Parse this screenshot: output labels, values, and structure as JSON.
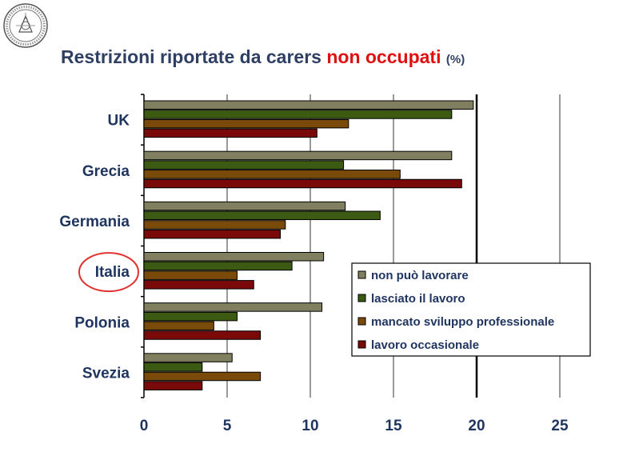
{
  "page": {
    "title_main": "Restrizioni riportate da carers",
    "title_highlight": "non occupati",
    "title_unit": "(%)",
    "logo": "university-seal-icon"
  },
  "colors": {
    "non_puo_lavorare": "#808060",
    "lasciato_il_lavoro": "#3d5a12",
    "mancato_sviluppo": "#7a4a0a",
    "lavoro_occasionale": "#7a0a0a",
    "highlight_circle": "#e03030",
    "text": "#1f3560"
  },
  "chart_data": {
    "type": "bar",
    "orientation": "horizontal",
    "categories": [
      "UK",
      "Grecia",
      "Germania",
      "Italia",
      "Polonia",
      "Svezia"
    ],
    "series": [
      {
        "name": "non può lavorare",
        "values": [
          19.8,
          18.5,
          12.1,
          10.8,
          10.7,
          5.3
        ]
      },
      {
        "name": "lasciato il lavoro",
        "values": [
          18.5,
          12.0,
          14.2,
          8.9,
          5.6,
          3.5
        ]
      },
      {
        "name": "mancato sviluppo professionale",
        "values": [
          12.3,
          15.4,
          8.5,
          5.6,
          4.2,
          7.0
        ]
      },
      {
        "name": "lavoro occasionale",
        "values": [
          10.4,
          19.1,
          8.2,
          6.6,
          7.0,
          3.5
        ]
      }
    ],
    "xlim": [
      0,
      25
    ],
    "xticks": [
      "0",
      "5",
      "10",
      "15",
      "20",
      "25"
    ],
    "highlighted_category": "Italia",
    "reference_line": 20,
    "grid": true,
    "legend_position": "center-right"
  }
}
